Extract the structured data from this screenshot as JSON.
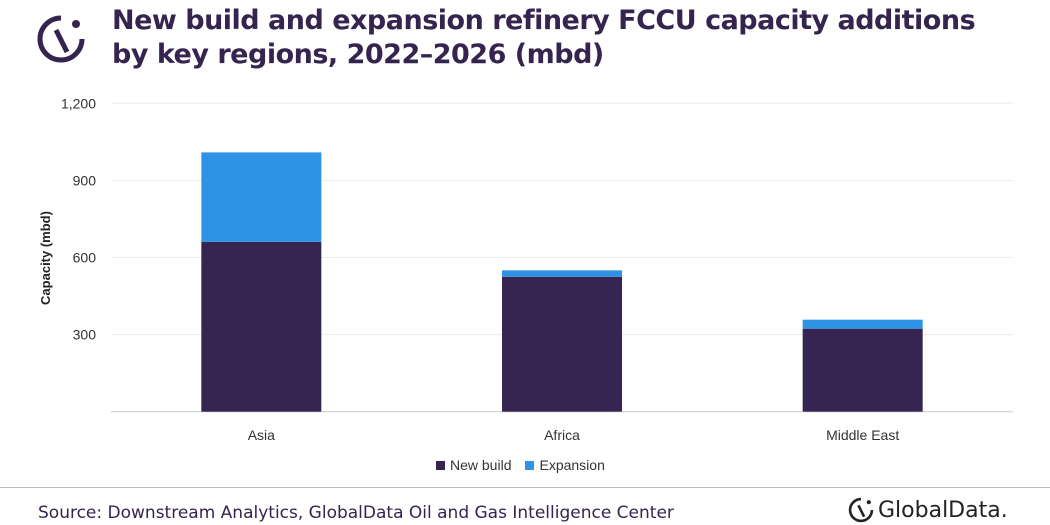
{
  "title_line1": "New build and expansion refinery FCCU capacity additions",
  "title_line2": "by key regions, 2022–2026 (mbd)",
  "source": "Source: Downstream Analytics, GlobalData Oil and Gas Intelligence Center",
  "brand": "GlobalData.",
  "colors": {
    "title": "#35244f",
    "new_build": "#362451",
    "expansion": "#2e93e5"
  },
  "chart_data": {
    "type": "bar",
    "stacked": true,
    "categories": [
      "Asia",
      "Africa",
      "Middle East"
    ],
    "series": [
      {
        "name": "New build",
        "values": [
          661,
          525,
          323
        ]
      },
      {
        "name": "Expansion",
        "values": [
          348,
          25,
          35
        ]
      }
    ],
    "xlabel": "",
    "ylabel": "Capacity (mbd)",
    "ylim": [
      0,
      1200
    ],
    "yticks": [
      300,
      600,
      900,
      1200
    ],
    "ytick_labels": [
      "300",
      "600",
      "900",
      "1,200"
    ],
    "grid": true,
    "legend": "bottom"
  }
}
